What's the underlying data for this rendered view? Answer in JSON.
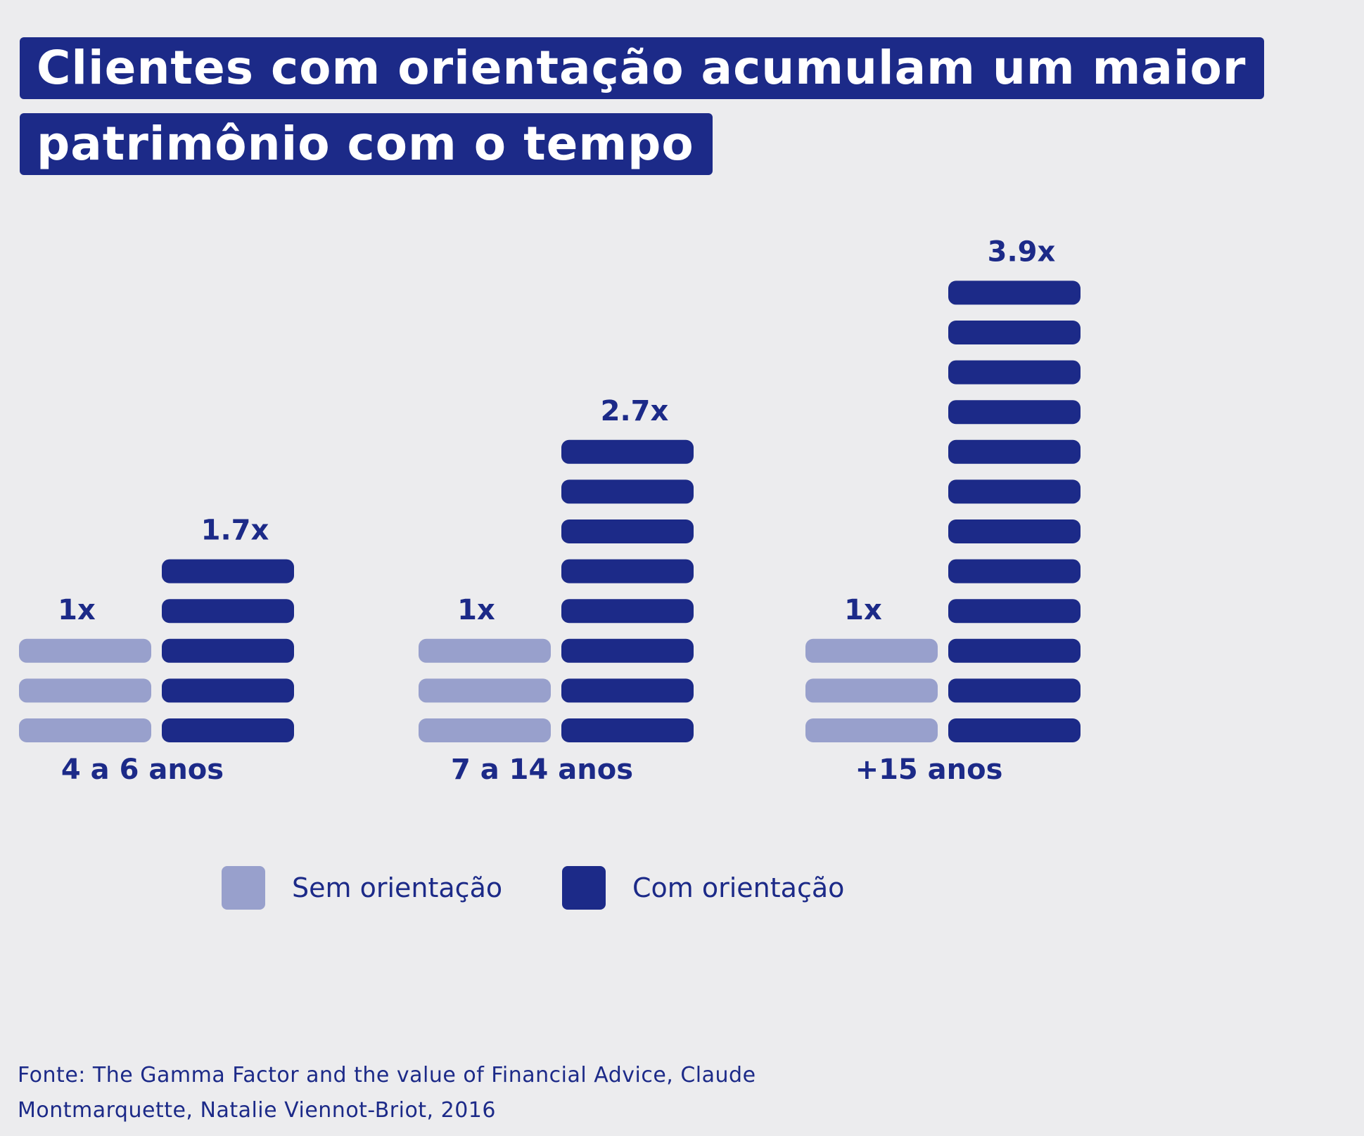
{
  "title": {
    "line1": "Clientes com orientação acumulam um maior",
    "line2": "patrimônio com o tempo"
  },
  "colors": {
    "sem": "#98a0cc",
    "com": "#1c2a88",
    "text": "#1c2a88",
    "background": "#ececee"
  },
  "legend": {
    "sem_label": "Sem orientação",
    "com_label": "Com orientação"
  },
  "source": {
    "line1": "Fonte: The Gamma Factor and the value of Financial Advice, Claude",
    "line2": "Montmarquette, Natalie Viennot-Briot, 2016"
  },
  "chart_data": {
    "type": "bar",
    "title": "Clientes com orientação acumulam um maior patrimônio com o tempo",
    "categories": [
      "4 a 6 anos",
      "7 a 14 anos",
      "+15 anos"
    ],
    "series": [
      {
        "name": "Sem orientação",
        "values": [
          1,
          1,
          1
        ],
        "labels": [
          "1x",
          "1x",
          "1x"
        ],
        "segments": [
          3,
          3,
          3
        ]
      },
      {
        "name": "Com orientação",
        "values": [
          1.7,
          2.7,
          3.9
        ],
        "labels": [
          "1.7x",
          "2.7x",
          "3.9x"
        ],
        "segments": [
          5,
          8,
          12
        ]
      }
    ],
    "legend_position": "bottom",
    "grid": false
  }
}
